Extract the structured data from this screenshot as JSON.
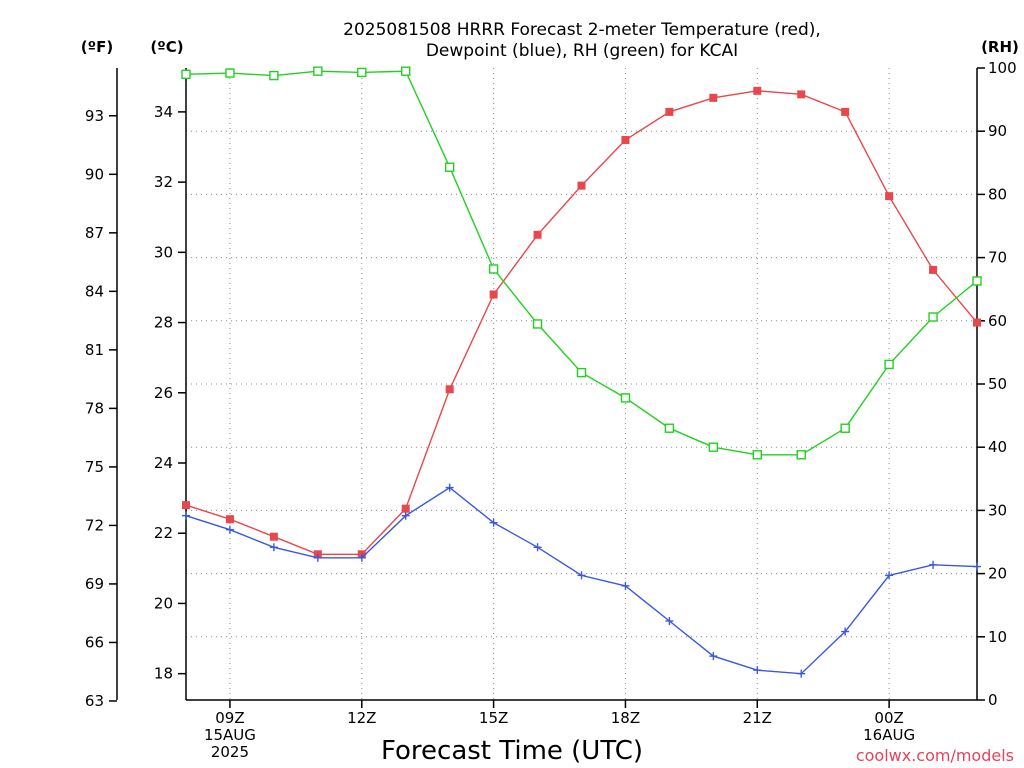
{
  "chart_data": {
    "type": "line",
    "title_line1": "2025081508 HRRR Forecast 2-meter Temperature (red),",
    "title_line2": "Dewpoint (blue), RH (green) for KCAI",
    "xlabel": "Forecast Time (UTC)",
    "credit": "coolwx.com/models",
    "units": {
      "fahrenheit": "(ºF)",
      "celsius": "(ºC)",
      "rh": "(RH)"
    },
    "x_hours": [
      8,
      9,
      10,
      11,
      12,
      13,
      14,
      15,
      16,
      17,
      18,
      19,
      20,
      21,
      22,
      23,
      24,
      25,
      26
    ],
    "xlim": [
      8,
      26
    ],
    "x_ticks": [
      {
        "hour": 9,
        "lines": [
          "09Z",
          "15AUG",
          "2025"
        ]
      },
      {
        "hour": 12,
        "lines": [
          "12Z"
        ]
      },
      {
        "hour": 15,
        "lines": [
          "15Z"
        ]
      },
      {
        "hour": 18,
        "lines": [
          "18Z"
        ]
      },
      {
        "hour": 21,
        "lines": [
          "21Z"
        ]
      },
      {
        "hour": 24,
        "lines": [
          "00Z",
          "16AUG"
        ]
      }
    ],
    "celsius_axis": {
      "ylim": [
        17.25,
        35.25
      ],
      "ticks": [
        "18",
        "20",
        "22",
        "24",
        "26",
        "28",
        "30",
        "32",
        "34"
      ]
    },
    "fahrenheit_axis": {
      "ticks": [
        "63",
        "66",
        "69",
        "72",
        "75",
        "78",
        "81",
        "84",
        "87",
        "90",
        "93"
      ]
    },
    "rh_axis": {
      "ylim": [
        0,
        100
      ],
      "ticks": [
        "0",
        "10",
        "20",
        "30",
        "40",
        "50",
        "60",
        "70",
        "80",
        "90",
        "100"
      ]
    },
    "series": [
      {
        "name": "Temperature (red)",
        "axis": "celsius",
        "color": "#e8474b",
        "marker": "filled-square",
        "values": [
          22.8,
          22.4,
          21.9,
          21.4,
          21.4,
          22.7,
          26.1,
          28.8,
          30.5,
          31.9,
          33.2,
          34.0,
          34.4,
          34.6,
          34.5,
          34.0,
          31.6,
          29.5,
          28.0
        ]
      },
      {
        "name": "Dewpoint (blue)",
        "axis": "celsius",
        "color": "#3a58e0",
        "marker": "plus",
        "values": [
          22.5,
          22.1,
          21.6,
          21.3,
          21.3,
          22.5,
          23.3,
          22.3,
          21.6,
          20.8,
          20.5,
          19.5,
          18.5,
          18.1,
          18.0,
          19.2,
          20.8,
          21.1,
          21.05
        ]
      },
      {
        "name": "RH (green)",
        "axis": "rh",
        "color": "#22d022",
        "marker": "open-square",
        "values": [
          99.0,
          99.2,
          98.8,
          99.5,
          99.3,
          99.5,
          84.3,
          68.2,
          59.5,
          51.8,
          47.8,
          43.0,
          40.0,
          38.8,
          38.8,
          43.0,
          53.1,
          60.6,
          66.3
        ]
      }
    ]
  }
}
